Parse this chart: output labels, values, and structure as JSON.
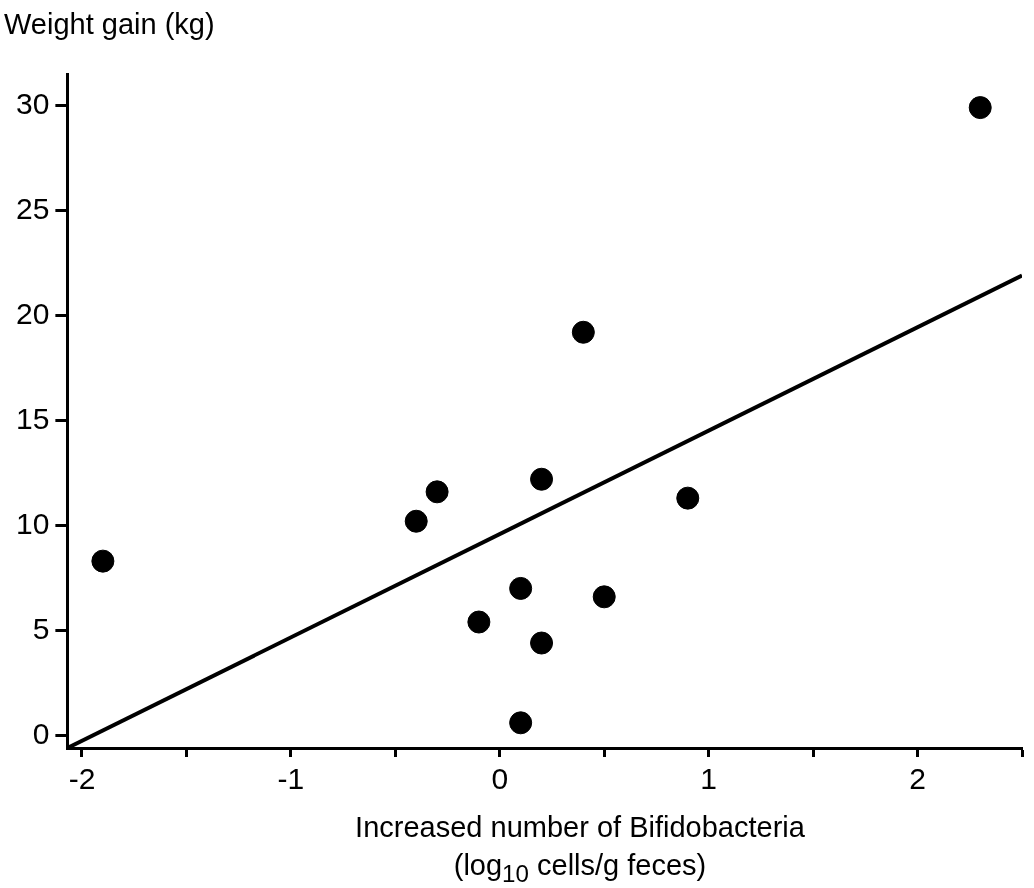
{
  "chart_data": {
    "type": "scatter",
    "xlabel": "Increased number of Bifidobacteria\n(log$_{10}$ cells/g feces)",
    "ylabel": "Weight gain (kg)",
    "xlim": [
      -2.07,
      2.5
    ],
    "ylim": [
      -0.6,
      31.5
    ],
    "xticks": [
      -2,
      {
        "value": -1.5,
        "label": null
      },
      -1,
      {
        "value": -0.5,
        "label": null
      },
      0,
      {
        "value": 0.5,
        "label": null
      },
      1,
      {
        "value": 1.5,
        "label": null
      },
      2,
      {
        "value": 2.5,
        "label": null
      }
    ],
    "yticks": [
      0,
      5,
      10,
      15,
      20,
      25,
      30
    ],
    "series": [
      {
        "type": "scatter",
        "marker": "circle",
        "color": "#000000",
        "x": [
          2.3,
          0.4,
          0.2,
          -0.3,
          -0.4,
          0.9,
          -1.9,
          0.1,
          0.5,
          -0.1,
          0.2,
          0.1
        ],
        "values": [
          29.9,
          19.2,
          12.2,
          11.6,
          10.2,
          11.3,
          8.3,
          7.0,
          6.6,
          5.4,
          4.4,
          0.6
        ]
      },
      {
        "type": "line",
        "marker": "none",
        "color": "#000000",
        "x": [
          -2.07,
          2.5
        ],
        "values": [
          -0.6,
          21.9
        ]
      }
    ]
  }
}
